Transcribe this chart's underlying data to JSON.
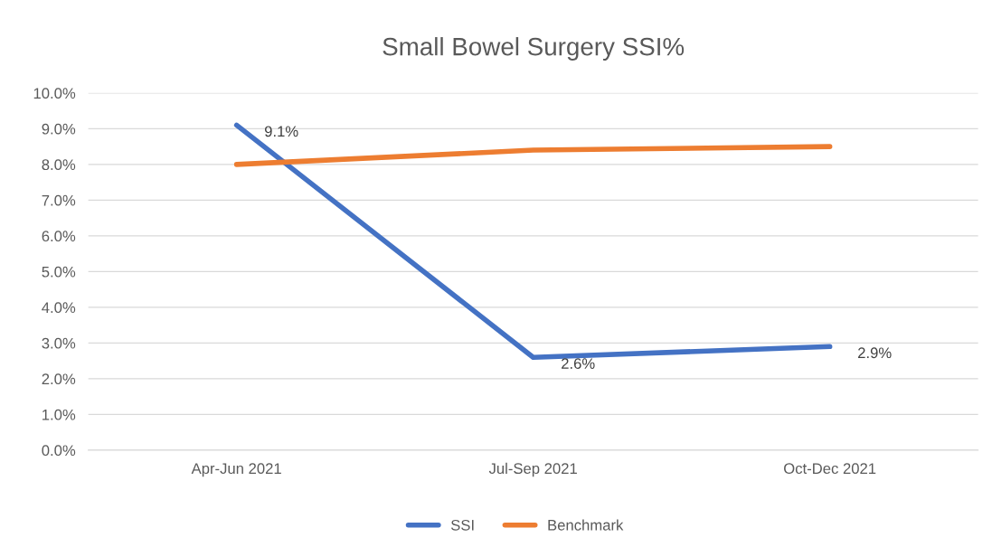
{
  "chart_data": {
    "type": "line",
    "title": "Small Bowel Surgery SSI%",
    "categories": [
      "Apr-Jun 2021",
      "Jul-Sep 2021",
      "Oct-Dec 2021"
    ],
    "series": [
      {
        "name": "SSI",
        "color": "#4472c4",
        "values": [
          9.1,
          2.6,
          2.9
        ],
        "value_labels": [
          "9.1%",
          "2.6%",
          "2.9%"
        ]
      },
      {
        "name": "Benchmark",
        "color": "#ed7d31",
        "values": [
          8.0,
          8.4,
          8.5
        ]
      }
    ],
    "ylim": [
      0,
      10
    ],
    "yticks": [
      {
        "value": 0,
        "label": "0.0%"
      },
      {
        "value": 1,
        "label": "1.0%"
      },
      {
        "value": 2,
        "label": "2.0%"
      },
      {
        "value": 3,
        "label": "3.0%"
      },
      {
        "value": 4,
        "label": "4.0%"
      },
      {
        "value": 5,
        "label": "5.0%"
      },
      {
        "value": 6,
        "label": "6.0%"
      },
      {
        "value": 7,
        "label": "7.0%"
      },
      {
        "value": 8,
        "label": "8.0%"
      },
      {
        "value": 9,
        "label": "9.0%"
      },
      {
        "value": 10,
        "label": "10.0%"
      }
    ],
    "grid": "y",
    "legend": "bottom",
    "marker": "none",
    "line_style": "solid"
  }
}
